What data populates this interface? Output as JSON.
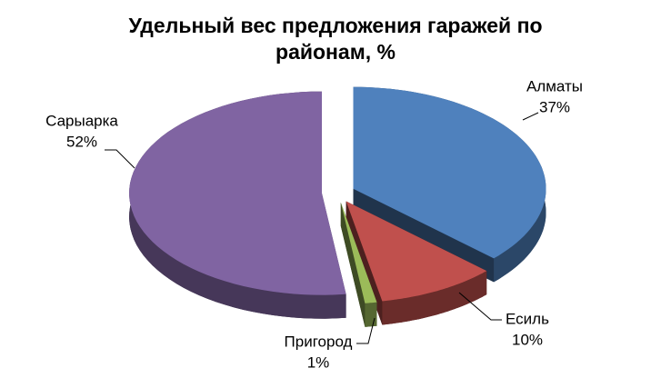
{
  "chart_data": {
    "type": "pie",
    "title": "Удельный вес предложения гаражей по районам, %",
    "categories": [
      "Алматы",
      "Есиль",
      "Пригород",
      "Сарыарка"
    ],
    "values": [
      37,
      10,
      1,
      52
    ],
    "value_labels": [
      "37%",
      "10%",
      "1%",
      "52%"
    ],
    "colors": [
      "#4f81bd",
      "#c0504d",
      "#9bbb59",
      "#8064a2"
    ]
  }
}
